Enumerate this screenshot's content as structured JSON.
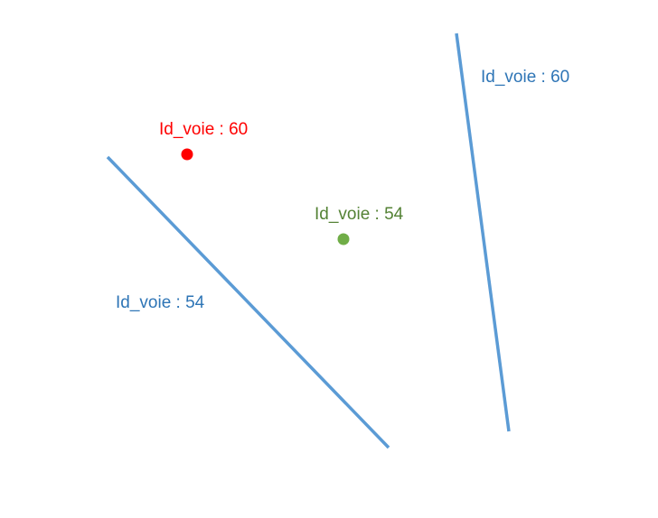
{
  "colors": {
    "line": "#5b9bd5",
    "line_label": "#2e75b6",
    "point_red": "#ff0000",
    "point_green": "#70ad47",
    "label_green": "#548235",
    "label_red": "#ff0000"
  },
  "lines": {
    "left": {
      "label": "Id_voie : 54"
    },
    "right": {
      "label": "Id_voie : 60"
    }
  },
  "points": {
    "red": {
      "label": "Id_voie : 60"
    },
    "green": {
      "label": "Id_voie : 54"
    }
  }
}
